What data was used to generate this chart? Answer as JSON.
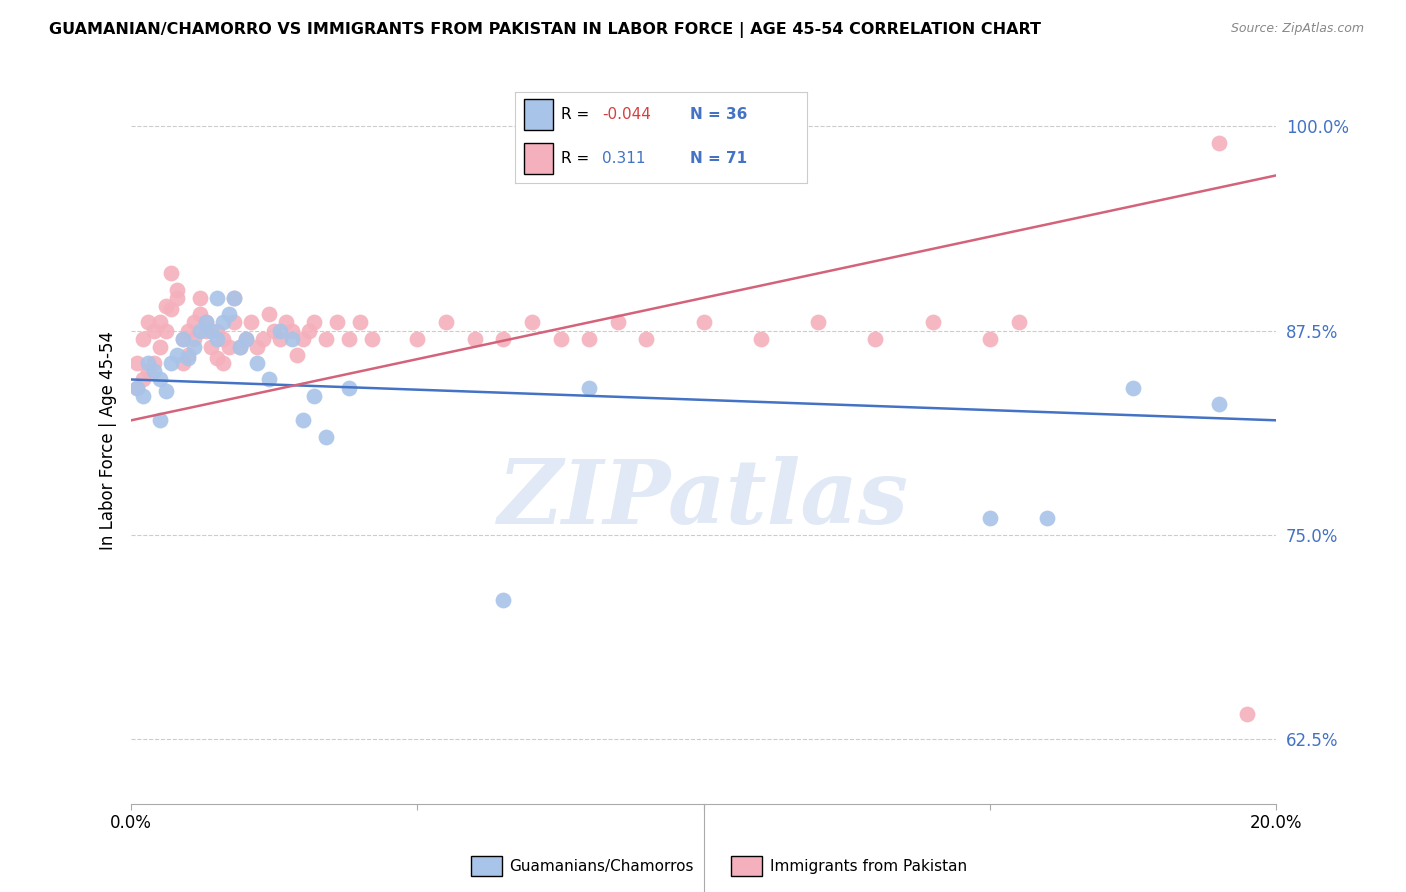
{
  "title": "GUAMANIAN/CHAMORRO VS IMMIGRANTS FROM PAKISTAN IN LABOR FORCE | AGE 45-54 CORRELATION CHART",
  "source": "Source: ZipAtlas.com",
  "ylabel": "In Labor Force | Age 45-54",
  "y_ticks": [
    0.625,
    0.75,
    0.875,
    1.0
  ],
  "y_tick_labels": [
    "62.5%",
    "75.0%",
    "87.5%",
    "100.0%"
  ],
  "x_ticks": [
    0.0,
    0.05,
    0.1,
    0.15,
    0.2
  ],
  "x_tick_labels": [
    "0.0%",
    "",
    "",
    "",
    "20.0%"
  ],
  "blue_R": "-0.044",
  "blue_N": "36",
  "pink_R": "0.311",
  "pink_N": "71",
  "blue_color": "#a8c4e8",
  "pink_color": "#f4b0bc",
  "blue_line_color": "#4472c4",
  "pink_line_color": "#d4637a",
  "legend_label_blue": "Guamanians/Chamorros",
  "legend_label_pink": "Immigrants from Pakistan",
  "blue_scatter_x": [
    0.001,
    0.002,
    0.003,
    0.004,
    0.005,
    0.005,
    0.006,
    0.007,
    0.008,
    0.009,
    0.01,
    0.011,
    0.012,
    0.013,
    0.014,
    0.015,
    0.015,
    0.016,
    0.017,
    0.018,
    0.019,
    0.02,
    0.022,
    0.024,
    0.026,
    0.028,
    0.03,
    0.032,
    0.034,
    0.038,
    0.065,
    0.08,
    0.15,
    0.16,
    0.175,
    0.19
  ],
  "blue_scatter_y": [
    0.84,
    0.835,
    0.855,
    0.85,
    0.845,
    0.82,
    0.838,
    0.855,
    0.86,
    0.87,
    0.858,
    0.865,
    0.875,
    0.88,
    0.875,
    0.895,
    0.87,
    0.88,
    0.885,
    0.895,
    0.865,
    0.87,
    0.855,
    0.845,
    0.875,
    0.87,
    0.82,
    0.835,
    0.81,
    0.84,
    0.71,
    0.84,
    0.76,
    0.76,
    0.84,
    0.83
  ],
  "pink_scatter_x": [
    0.001,
    0.001,
    0.002,
    0.002,
    0.003,
    0.003,
    0.004,
    0.004,
    0.005,
    0.005,
    0.006,
    0.006,
    0.007,
    0.007,
    0.008,
    0.008,
    0.009,
    0.009,
    0.01,
    0.01,
    0.011,
    0.011,
    0.012,
    0.012,
    0.013,
    0.013,
    0.014,
    0.015,
    0.015,
    0.016,
    0.016,
    0.017,
    0.018,
    0.018,
    0.019,
    0.02,
    0.021,
    0.022,
    0.023,
    0.024,
    0.025,
    0.026,
    0.027,
    0.028,
    0.029,
    0.03,
    0.031,
    0.032,
    0.034,
    0.036,
    0.038,
    0.04,
    0.042,
    0.05,
    0.055,
    0.06,
    0.065,
    0.07,
    0.075,
    0.08,
    0.085,
    0.09,
    0.1,
    0.11,
    0.12,
    0.13,
    0.14,
    0.15,
    0.155,
    0.19,
    0.195
  ],
  "pink_scatter_y": [
    0.84,
    0.855,
    0.845,
    0.87,
    0.85,
    0.88,
    0.855,
    0.875,
    0.88,
    0.865,
    0.875,
    0.89,
    0.888,
    0.91,
    0.9,
    0.895,
    0.87,
    0.855,
    0.86,
    0.875,
    0.88,
    0.87,
    0.885,
    0.895,
    0.875,
    0.88,
    0.865,
    0.875,
    0.858,
    0.87,
    0.855,
    0.865,
    0.88,
    0.895,
    0.865,
    0.87,
    0.88,
    0.865,
    0.87,
    0.885,
    0.875,
    0.87,
    0.88,
    0.875,
    0.86,
    0.87,
    0.875,
    0.88,
    0.87,
    0.88,
    0.87,
    0.88,
    0.87,
    0.87,
    0.88,
    0.87,
    0.87,
    0.88,
    0.87,
    0.87,
    0.88,
    0.87,
    0.88,
    0.87,
    0.88,
    0.87,
    0.88,
    0.87,
    0.88,
    0.99,
    0.64
  ],
  "blue_line_x0": 0.0,
  "blue_line_y0": 0.845,
  "blue_line_x1": 0.2,
  "blue_line_y1": 0.82,
  "pink_line_x0": 0.0,
  "pink_line_y0": 0.82,
  "pink_line_x1": 0.2,
  "pink_line_y1": 0.97,
  "xlim": [
    0.0,
    0.2
  ],
  "ylim": [
    0.585,
    1.03
  ],
  "watermark_text": "ZIPatlas",
  "figsize": [
    14.06,
    8.92
  ],
  "dpi": 100
}
